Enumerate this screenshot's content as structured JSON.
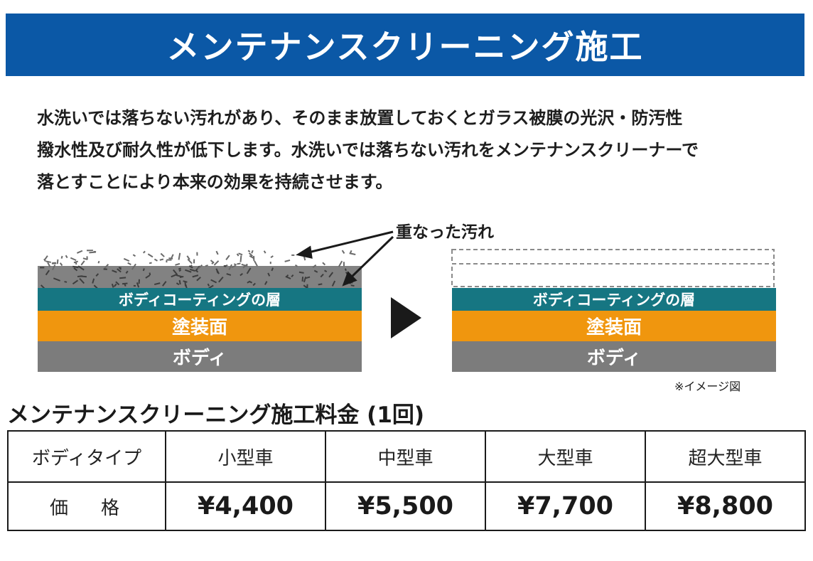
{
  "title": "メンテナンスクリーニング施工",
  "description": [
    "水洗いでは落ちない汚れがあり、そのまま放置しておくとガラス被膜の光沢・防汚性",
    "撥水性及び耐久性が低下します。水洗いでは落ちない汚れをメンテナンスクリーナーで",
    "落とすことにより本来の効果を持続させます。"
  ],
  "diagram": {
    "stain_label": "重なった汚れ",
    "layers": {
      "coating": "ボディコーティングの層",
      "paint": "塗装面",
      "body": "ボディ"
    },
    "note": "※イメージ図",
    "colors": {
      "coating": "#167682",
      "paint": "#f0960e",
      "body": "#7c7c7c",
      "dirt": "#828282"
    }
  },
  "price_section": {
    "title": "メンテナンスクリーニング施工料金 (1回)",
    "header": [
      "ボディタイプ",
      "小型車",
      "中型車",
      "大型車",
      "超大型車"
    ],
    "row_label": "価格",
    "prices": [
      "¥4,400",
      "¥5,500",
      "¥7,700",
      "¥8,800"
    ]
  },
  "colors": {
    "banner": "#0b58a6"
  }
}
